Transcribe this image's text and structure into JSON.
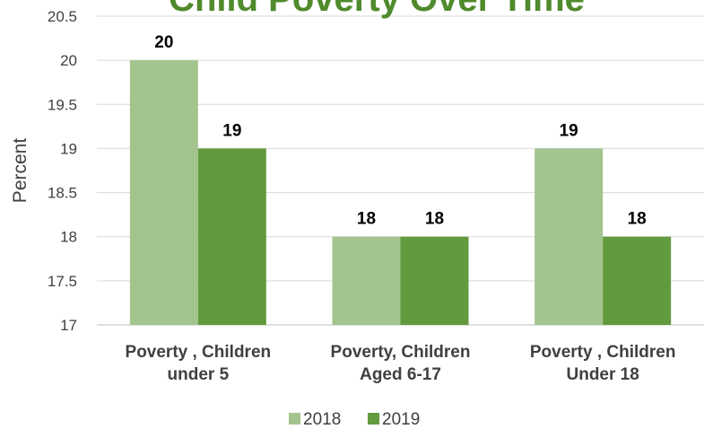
{
  "chart_data": {
    "type": "bar",
    "title": "Child Poverty Over Time",
    "ylabel": "Percent",
    "ylim": [
      17,
      20.5
    ],
    "yticks": [
      "17",
      "17.5",
      "18",
      "18.5",
      "19",
      "19.5",
      "20",
      "20.5"
    ],
    "categories": [
      [
        "Poverty , Children",
        "under 5"
      ],
      [
        "Poverty, Children",
        "Aged 6-17"
      ],
      [
        "Poverty , Children",
        "Under 18"
      ]
    ],
    "series": [
      {
        "name": "2018",
        "values": [
          20,
          18,
          19
        ],
        "labels": [
          "20",
          "18",
          "19"
        ],
        "color": "#a3c48e"
      },
      {
        "name": "2019",
        "values": [
          19,
          18,
          18
        ],
        "labels": [
          "19",
          "18",
          "18"
        ],
        "color": "#629b3d"
      }
    ],
    "legend": "bottom",
    "grid": true,
    "title_color": "#4f8a2c"
  }
}
